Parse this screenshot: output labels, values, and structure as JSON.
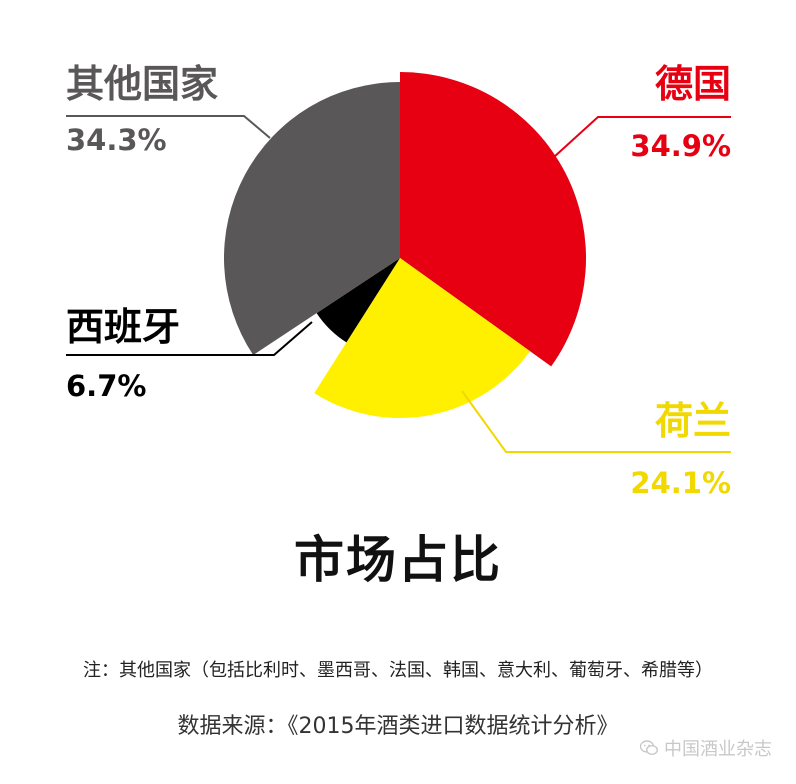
{
  "chart_data": {
    "type": "pie",
    "title": "市场占比",
    "slices": [
      {
        "name": "德国",
        "value": 34.9,
        "label": "34.9%",
        "color": "#e60012"
      },
      {
        "name": "荷兰",
        "value": 24.1,
        "label": "24.1%",
        "color": "#fff000"
      },
      {
        "name": "西班牙",
        "value": 6.7,
        "label": "6.7%",
        "color": "#000000"
      },
      {
        "name": "其他国家",
        "value": 34.3,
        "label": "34.3%",
        "color": "#595757"
      }
    ]
  },
  "note": "注：其他国家（包括比利时、墨西哥、法国、韩国、意大利、葡萄牙、希腊等）",
  "source": "数据来源：《2015年酒类进口数据统计分析》",
  "watermark": {
    "text": "中国酒业杂志",
    "icon": "wechat-icon"
  }
}
